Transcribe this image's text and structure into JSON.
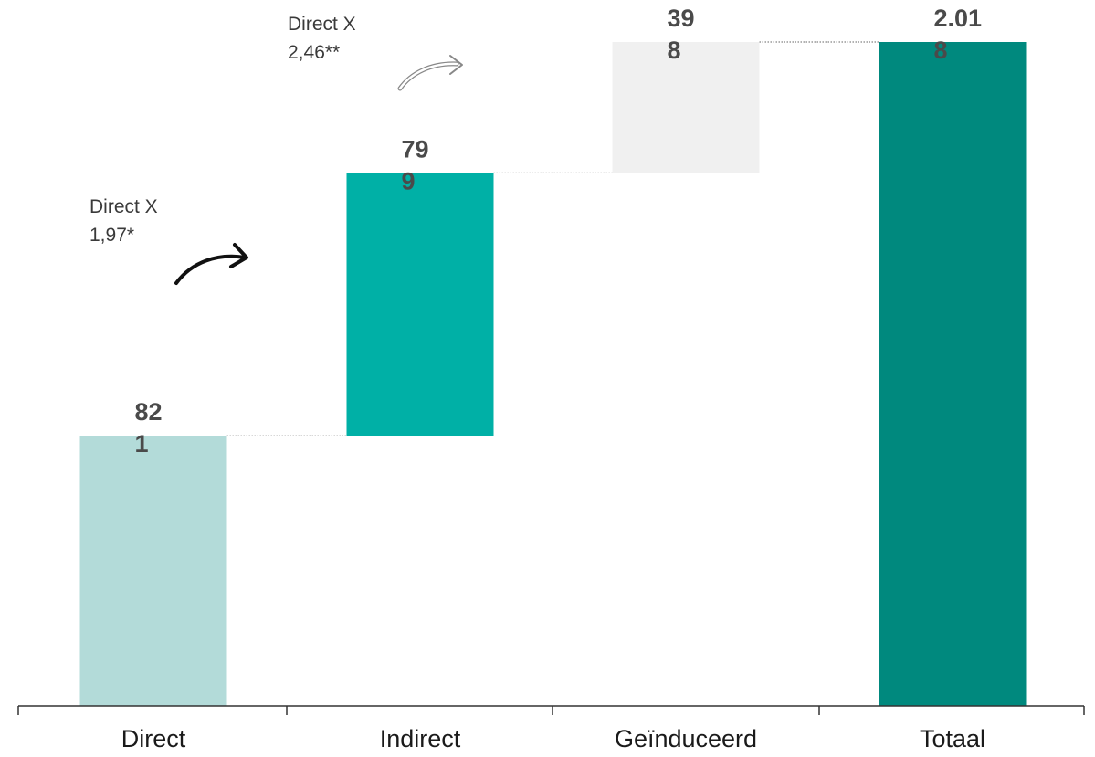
{
  "chart_data": {
    "type": "bar",
    "subtype": "waterfall",
    "categories": [
      "Direct",
      "Indirect",
      "Geïnduceerd",
      "Totaal"
    ],
    "values": [
      821,
      799,
      398,
      2018
    ],
    "value_labels": [
      [
        "82",
        "1"
      ],
      [
        "79",
        "9"
      ],
      [
        "39",
        "8"
      ],
      [
        "2.01",
        "8"
      ]
    ],
    "ylim": [
      0,
      2018
    ],
    "grid": false,
    "colors": [
      "#b3dbd9",
      "#00b0a6",
      "#f0f0f0",
      "#00897e"
    ],
    "annotations": [
      {
        "lines": [
          "Direct X",
          "1,97*"
        ],
        "arrow": "dark"
      },
      {
        "lines": [
          "Direct X",
          "2,46**"
        ],
        "arrow": "outline"
      }
    ]
  }
}
